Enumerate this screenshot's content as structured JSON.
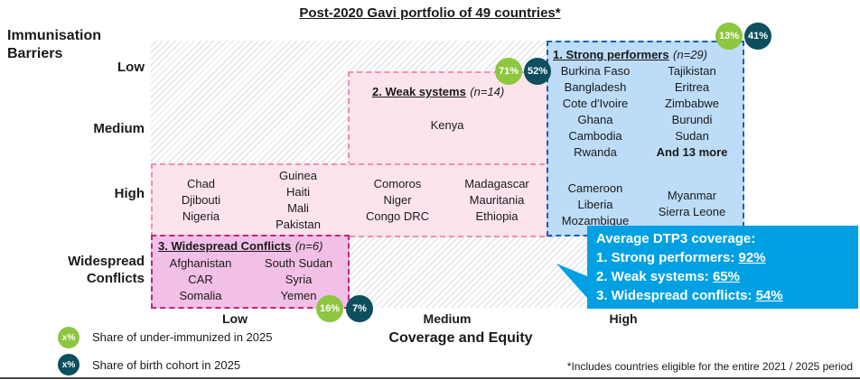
{
  "title": "Post-2020 Gavi portfolio of 49 countries*",
  "y_axis": {
    "title_line1": "Immunisation",
    "title_line2": "Barriers",
    "ticks": [
      "Low",
      "Medium",
      "High",
      "Widespread",
      "Conflicts"
    ]
  },
  "x_axis": {
    "title": "Coverage and Equity",
    "ticks": [
      "Low",
      "Medium",
      "High"
    ]
  },
  "groups": {
    "strong": {
      "title": "1. Strong performers",
      "n": "(n=29)",
      "col1": [
        "Burkina Faso",
        "Bangladesh",
        "Cote d'Ivoire",
        "Ghana",
        "Cambodia",
        "Rwanda"
      ],
      "col2": [
        "Tajikistan",
        "Eritrea",
        "Zimbabwe",
        "Burundi",
        "Sudan",
        "And 13 more"
      ],
      "col3": [
        "Cameroon",
        "Liberia",
        "Mozambique"
      ],
      "col4": [
        "Myanmar",
        "Sierra Leone"
      ],
      "share_underimmunized": "13%",
      "share_birth_cohort": "41%"
    },
    "weak": {
      "title": "2. Weak systems",
      "n": "(n=14)",
      "medium": [
        "Kenya"
      ],
      "high_a": [
        "Chad",
        "Djibouti",
        "Nigeria"
      ],
      "high_b": [
        "Guinea",
        "Haiti",
        "Mali",
        "Pakistan"
      ],
      "high_c": [
        "Comoros",
        "Niger",
        "Congo DRC"
      ],
      "high_d": [
        "Madagascar",
        "Mauritania",
        "Ethiopia"
      ],
      "share_underimmunized": "71%",
      "share_birth_cohort": "52%"
    },
    "conflict": {
      "title": "3. Widespread Conflicts",
      "n": "(n=6)",
      "col1": [
        "Afghanistan",
        "CAR",
        "Somalia"
      ],
      "col2": [
        "South Sudan",
        "Syria",
        "Yemen"
      ],
      "share_underimmunized": "16%",
      "share_birth_cohort": "7%"
    }
  },
  "callout": {
    "heading": "Average DTP3 coverage:",
    "rows": [
      {
        "label": "1. Strong performers: ",
        "value": "92%"
      },
      {
        "label": "2. Weak systems: ",
        "value": "65%"
      },
      {
        "label": "3. Widespread conflicts: ",
        "value": "54%"
      }
    ]
  },
  "legend": {
    "bubble_label": "x%",
    "green_text": "Share of under-immunized in 2025",
    "teal_text": "Share of birth cohort in 2025"
  },
  "footnote": "*Includes countries eligible for the entire 2021 / 2025 period",
  "colors": {
    "green": "#8dc63f",
    "teal": "#0d4f5c",
    "strong_fill": "#bcdcf8",
    "strong_border": "#1a5fb4",
    "weak_fill": "#fce4ea",
    "weak_border": "#ef8fb0",
    "conflict_fill": "#f2bfe6",
    "conflict_border": "#c2247f",
    "callout": "#00a0e3"
  }
}
